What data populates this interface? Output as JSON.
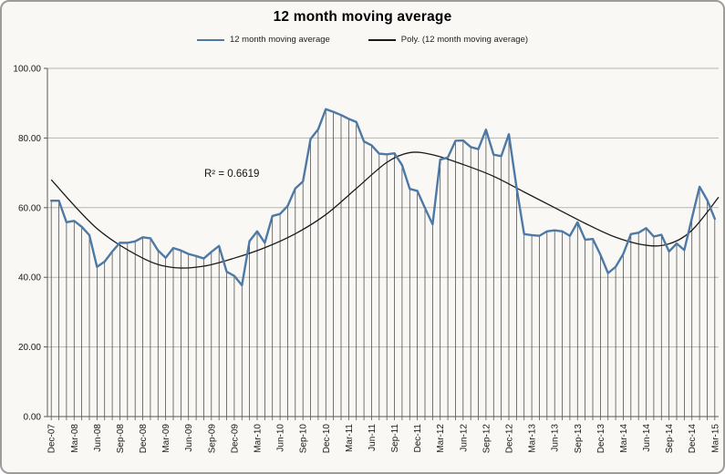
{
  "chart_data": {
    "type": "line",
    "title": "12 month moving average",
    "legend_position": "top",
    "grid": true,
    "drop_lines": true,
    "ylim": [
      0,
      100
    ],
    "y_tick_labels": [
      "0.00",
      "20.00",
      "40.00",
      "60.00",
      "80.00",
      "100.00"
    ],
    "y_tick_values": [
      0,
      20,
      40,
      60,
      80,
      100
    ],
    "x_tick_label_interval_months": 3,
    "x_tick_labels": [
      "Dec-07",
      "Mar-08",
      "Jun-08",
      "Sep-08",
      "Dec-08",
      "Mar-09",
      "Jun-09",
      "Sep-09",
      "Dec-09",
      "Mar-10",
      "Jun-10",
      "Sep-10",
      "Dec-10",
      "Mar-11",
      "Jun-11",
      "Sep-11",
      "Dec-11",
      "Mar-12",
      "Jun-12",
      "Sep-12",
      "Dec-12",
      "Mar-13",
      "Jun-13",
      "Sep-13",
      "Dec-13",
      "Mar-14",
      "Jun-14",
      "Sep-14",
      "Dec-14",
      "Mar-15"
    ],
    "series": [
      {
        "name": "12 month moving average",
        "color": "#4d79a6",
        "values": [
          62,
          62,
          55.8,
          56.2,
          54.5,
          52.1,
          43,
          44.5,
          47.4,
          49.9,
          49.9,
          50.3,
          51.5,
          51.2,
          47.7,
          45.6,
          48.4,
          47.7,
          46.7,
          46.1,
          45.4,
          47.3,
          49,
          41.6,
          40.4,
          37.7,
          50.4,
          53.2,
          49.9,
          57.6,
          58.2,
          60.5,
          65.5,
          67.5,
          79.7,
          82.5,
          88.3,
          87.5,
          86.6,
          85.5,
          84.6,
          79,
          77.9,
          75.5,
          75.3,
          75.6,
          72.2,
          65.4,
          64.8,
          59.9,
          55.2,
          73.8,
          74.4,
          79.2,
          79.3,
          77.4,
          76.8,
          82.4,
          75.2,
          74.8,
          81.1,
          65.9,
          52.4,
          52.1,
          51.9,
          53.2,
          53.5,
          53.2,
          51.9,
          55.8,
          50.8,
          51,
          46.5,
          41.2,
          43,
          46.7,
          52.4,
          52.8,
          54.1,
          51.7,
          52.2,
          47.4,
          49.7,
          47.8,
          57,
          66,
          62.2,
          56.8
        ]
      }
    ],
    "trendline": {
      "name": "Poly. (12 month moving average)",
      "color": "#1a1a1a",
      "r_squared": 0.6619,
      "anchors": [
        [
          0,
          68
        ],
        [
          6,
          54
        ],
        [
          12,
          45.5
        ],
        [
          16,
          42.8
        ],
        [
          20,
          43.2
        ],
        [
          24,
          45.5
        ],
        [
          28,
          48.5
        ],
        [
          32,
          52.5
        ],
        [
          36,
          58
        ],
        [
          40,
          65.5
        ],
        [
          44,
          73
        ],
        [
          47,
          75.8
        ],
        [
          50,
          75.2
        ],
        [
          54,
          72.4
        ],
        [
          58,
          69
        ],
        [
          62,
          64.5
        ],
        [
          66,
          60
        ],
        [
          70,
          55.5
        ],
        [
          74,
          51.5
        ],
        [
          78,
          49.2
        ],
        [
          81,
          49.6
        ],
        [
          84,
          53.5
        ],
        [
          87.5,
          63
        ]
      ]
    }
  },
  "legend": {
    "series_label": "12 month moving average",
    "trendline_label": "Poly. (12 month moving average)"
  },
  "annotation": {
    "r_squared_text": "R² = 0.6619"
  },
  "colors": {
    "series_line": "#4d79a6",
    "trendline": "#1a1a1a",
    "gridline": "#b8b5b1",
    "drop_line": "#3c3c3c",
    "axis": "#595959",
    "tick_text": "#1a1a1a",
    "chart_background": "#f9f8f5",
    "border": "#9e9c99"
  }
}
